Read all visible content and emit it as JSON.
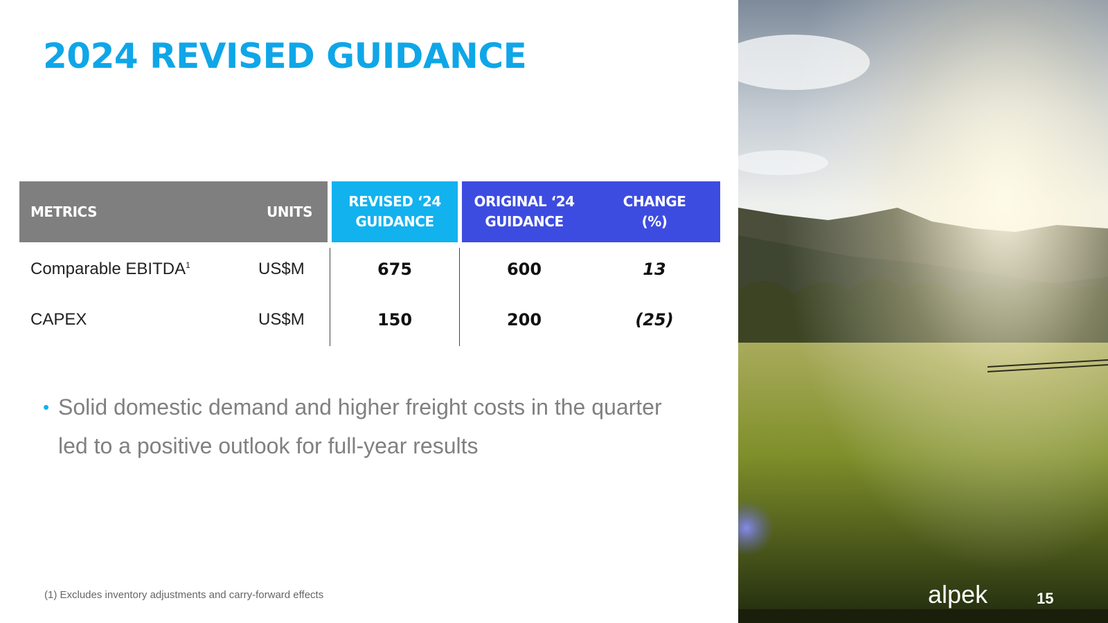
{
  "slide": {
    "title": "2024 REVISED GUIDANCE",
    "page_number": "15",
    "logo_text": "alpek"
  },
  "table": {
    "headers": {
      "metrics": "METRICS",
      "units": "UNITS",
      "revised_line1": "REVISED ‘24",
      "revised_line2": "GUIDANCE",
      "original_line1": "ORIGINAL ‘24",
      "original_line2": "GUIDANCE",
      "change_line1": "CHANGE",
      "change_line2": "(%)"
    },
    "rows": [
      {
        "metric": "Comparable EBITDA",
        "footnote_mark": "1",
        "units": "US$M",
        "revised": "675",
        "original": "600",
        "change": "13"
      },
      {
        "metric": "CAPEX",
        "units": "US$M",
        "revised": "150",
        "original": "200",
        "change": "(25)"
      }
    ]
  },
  "bullets": [
    "Solid domestic demand and higher freight costs in the quarter led to a positive outlook for full-year results"
  ],
  "footnote": "(1) Excludes inventory adjustments and carry-forward effects",
  "colors": {
    "title": "#0fa6e8",
    "header_gray": "#7f7f7f",
    "header_cyan": "#12b2ef",
    "header_blue": "#3d4ce0"
  }
}
